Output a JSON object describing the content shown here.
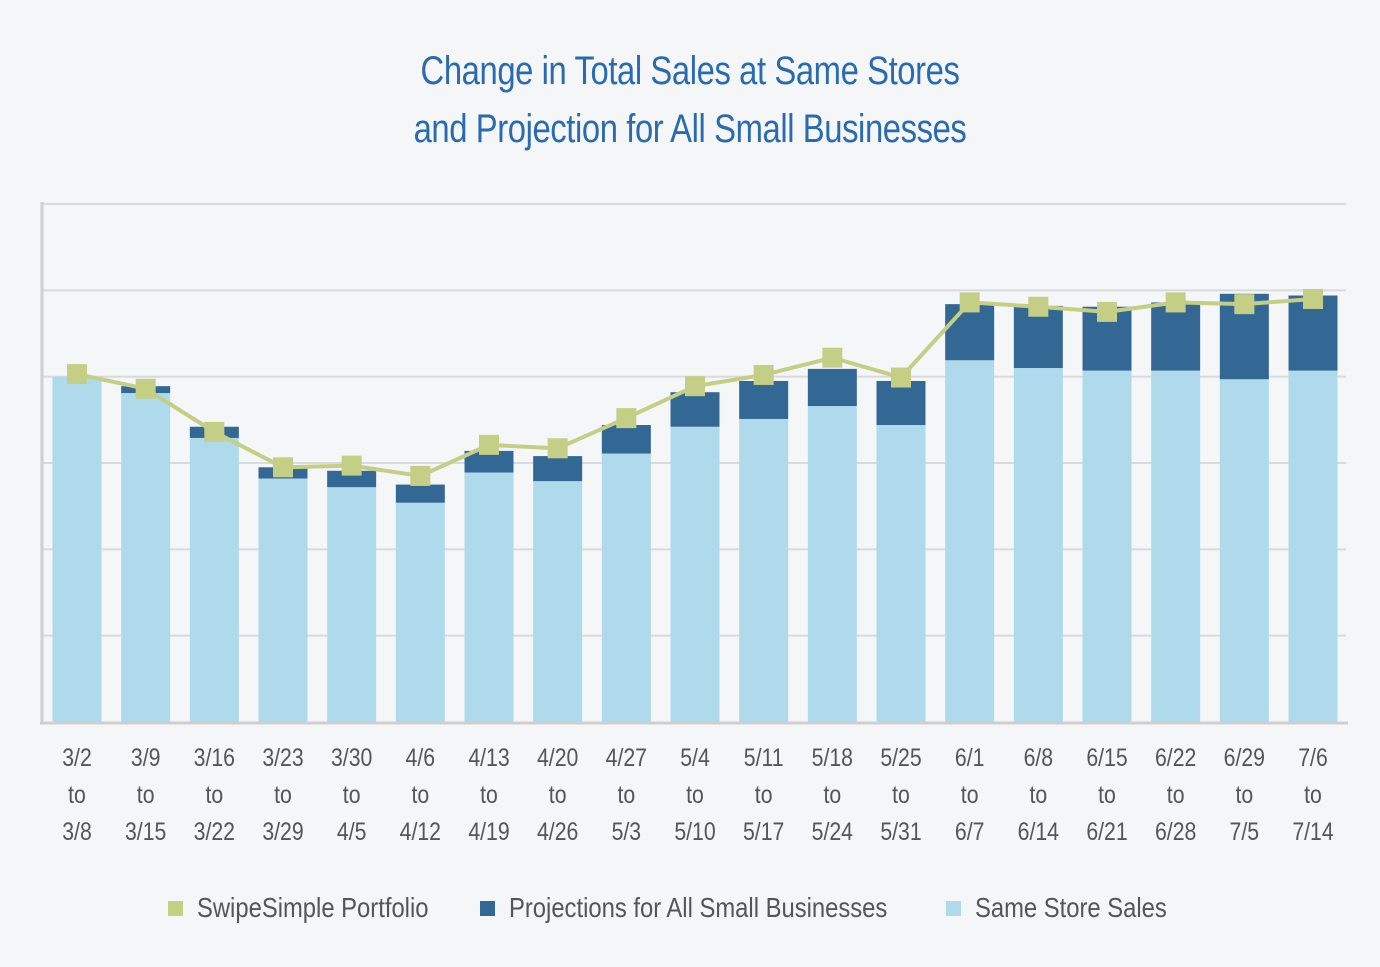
{
  "chart_data": {
    "type": "bar",
    "stacked": true,
    "title": "Change in Total Sales at Same Stores and Projection for All Small Businesses",
    "title_lines": [
      "Change in Total Sales at Same Stores",
      "and Projection for All Small Businesses"
    ],
    "xlabel": "",
    "ylabel": "",
    "y_tick_labels_visible": false,
    "ylim": [
      0,
      6
    ],
    "y_gridlines": [
      1,
      2,
      3,
      4,
      5,
      6
    ],
    "grid": true,
    "legend_position": "bottom",
    "categories": [
      [
        "3/2",
        "to",
        "3/8"
      ],
      [
        "3/9",
        "to",
        "3/15"
      ],
      [
        "3/16",
        "to",
        "3/22"
      ],
      [
        "3/23",
        "to",
        "3/29"
      ],
      [
        "3/30",
        "to",
        "4/5"
      ],
      [
        "4/6",
        "to",
        "4/12"
      ],
      [
        "4/13",
        "to",
        "4/19"
      ],
      [
        "4/20",
        "to",
        "4/26"
      ],
      [
        "4/27",
        "to",
        "5/3"
      ],
      [
        "5/4",
        "to",
        "5/10"
      ],
      [
        "5/11",
        "to",
        "5/17"
      ],
      [
        "5/18",
        "to",
        "5/24"
      ],
      [
        "5/25",
        "to",
        "5/31"
      ],
      [
        "6/1",
        "to",
        "6/7"
      ],
      [
        "6/8",
        "to",
        "6/14"
      ],
      [
        "6/15",
        "to",
        "6/21"
      ],
      [
        "6/22",
        "to",
        "6/28"
      ],
      [
        "6/29",
        "to",
        "7/5"
      ],
      [
        "7/6",
        "to",
        "7/14"
      ]
    ],
    "series": [
      {
        "name": "Same Store Sales",
        "type": "bar",
        "color": "#afdaec",
        "values": [
          4.0,
          3.81,
          3.29,
          2.82,
          2.72,
          2.54,
          2.89,
          2.79,
          3.11,
          3.42,
          3.51,
          3.66,
          3.44,
          4.19,
          4.1,
          4.07,
          4.07,
          3.97,
          4.07
        ]
      },
      {
        "name": "Projections for All Small Businesses",
        "type": "bar",
        "color": "#336895",
        "values": [
          0.0,
          0.08,
          0.13,
          0.13,
          0.19,
          0.21,
          0.25,
          0.29,
          0.33,
          0.4,
          0.44,
          0.43,
          0.51,
          0.65,
          0.72,
          0.74,
          0.79,
          0.99,
          0.87
        ]
      },
      {
        "name": "SwipeSimple Portfolio",
        "type": "line",
        "marker": "square",
        "color": "#c5ce85",
        "values": [
          4.03,
          3.86,
          3.36,
          2.95,
          2.97,
          2.85,
          3.21,
          3.17,
          3.52,
          3.89,
          4.02,
          4.22,
          3.99,
          4.86,
          4.81,
          4.75,
          4.86,
          4.84,
          4.9
        ]
      }
    ]
  },
  "legend": {
    "items": [
      {
        "label": "SwipeSimple Portfolio",
        "color": "#c5ce85"
      },
      {
        "label": "Projections for All Small Businesses",
        "color": "#336895"
      },
      {
        "label": "Same Store Sales",
        "color": "#afdaec"
      }
    ]
  },
  "colors": {
    "title": "#2a6bb0",
    "grid": "#d9dadd",
    "axis": "#cfcfd2",
    "label": "#555555",
    "background": "#f5f6f8"
  }
}
